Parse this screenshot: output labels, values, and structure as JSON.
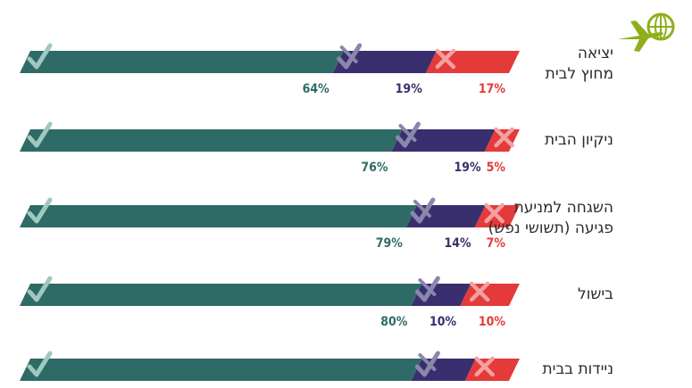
{
  "colors": {
    "yes": "#2f6b66",
    "partial": "#3a2f6e",
    "no": "#e43a3a",
    "icon": "#8fae1b"
  },
  "icon_name": "airplane-globe-icon",
  "chart_data": {
    "type": "bar",
    "stacked": true,
    "orientation": "horizontal",
    "categories": [
      [
        "יציאה",
        "מחוץ לבית"
      ],
      [
        "ניקיון הבית"
      ],
      [
        "השגחה למניעת",
        "פגיעה (תשושי נפש)"
      ],
      [
        "בישול"
      ],
      [
        "ניידות בבית"
      ]
    ],
    "series": [
      {
        "key": "yes",
        "marker": "check",
        "values": [
          64,
          76,
          79,
          80,
          null
        ],
        "labels": [
          "64%",
          "76%",
          "79%",
          "80%",
          ""
        ]
      },
      {
        "key": "partial",
        "marker": "check-x",
        "values": [
          19,
          19,
          14,
          10,
          null
        ],
        "labels": [
          "19%",
          "19%",
          "14%",
          "10%",
          ""
        ]
      },
      {
        "key": "no",
        "marker": "x",
        "values": [
          17,
          5,
          7,
          10,
          null
        ],
        "labels": [
          "17%",
          "5%",
          "7%",
          "10%",
          ""
        ]
      }
    ],
    "xlim": [
      0,
      100
    ],
    "grid": false,
    "legend": "none"
  }
}
